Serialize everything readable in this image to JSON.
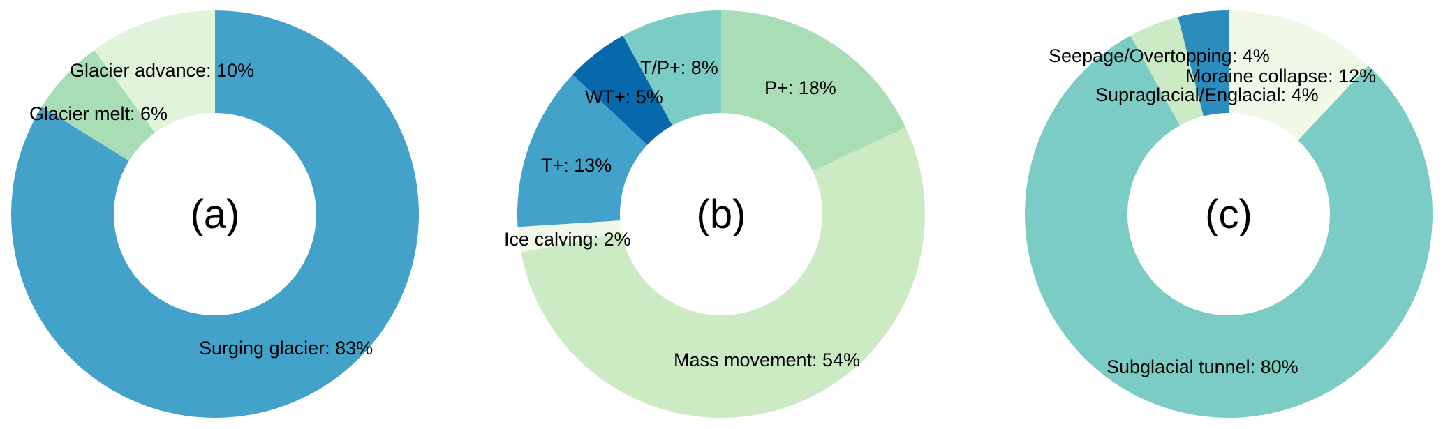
{
  "chart_data": [
    {
      "type": "pie",
      "center_label": "(a)",
      "slices": [
        {
          "label": "Surging glacier",
          "value": 83,
          "text": "Surging glacier: 83%",
          "color": "#43a2ca"
        },
        {
          "label": "Glacier melt",
          "value": 6,
          "text": "Glacier melt: 6%",
          "color": "#a8ddb5"
        },
        {
          "label": "Glacier advance",
          "value": 10,
          "text": "Glacier advance: 10%",
          "color": "#e0f3db"
        }
      ]
    },
    {
      "type": "pie",
      "center_label": "(b)",
      "slices": [
        {
          "label": "P+",
          "value": 18,
          "text": "P+: 18%",
          "color": "#a8ddb5"
        },
        {
          "label": "Mass movement",
          "value": 54,
          "text": "Mass movement: 54%",
          "color": "#ccebc5"
        },
        {
          "label": "Ice calving",
          "value": 2,
          "text": "Ice calving: 2%",
          "color": "#f0f9e8"
        },
        {
          "label": "T+",
          "value": 13,
          "text": "T+: 13%",
          "color": "#43a2ca"
        },
        {
          "label": "WT+",
          "value": 5,
          "text": "WT+: 5%",
          "color": "#0868ac"
        },
        {
          "label": "T/P+",
          "value": 8,
          "text": "T/P+: 8%",
          "color": "#7bccc4"
        }
      ]
    },
    {
      "type": "pie",
      "center_label": "(c)",
      "slices": [
        {
          "label": "Moraine collapse",
          "value": 12,
          "text": "Moraine collapse: 12%",
          "color": "#f0f9e8"
        },
        {
          "label": "Subglacial tunnel",
          "value": 80,
          "text": "Subglacial tunnel: 80%",
          "color": "#7bccc4"
        },
        {
          "label": "Supraglacial/Englacial",
          "value": 4,
          "text": "Supraglacial/Englacial: 4%",
          "color": "#ccebc5"
        },
        {
          "label": "Seepage/Overtopping",
          "value": 4,
          "text": "Seepage/Overtopping: 4%",
          "color": "#2b8cbe"
        }
      ]
    }
  ]
}
